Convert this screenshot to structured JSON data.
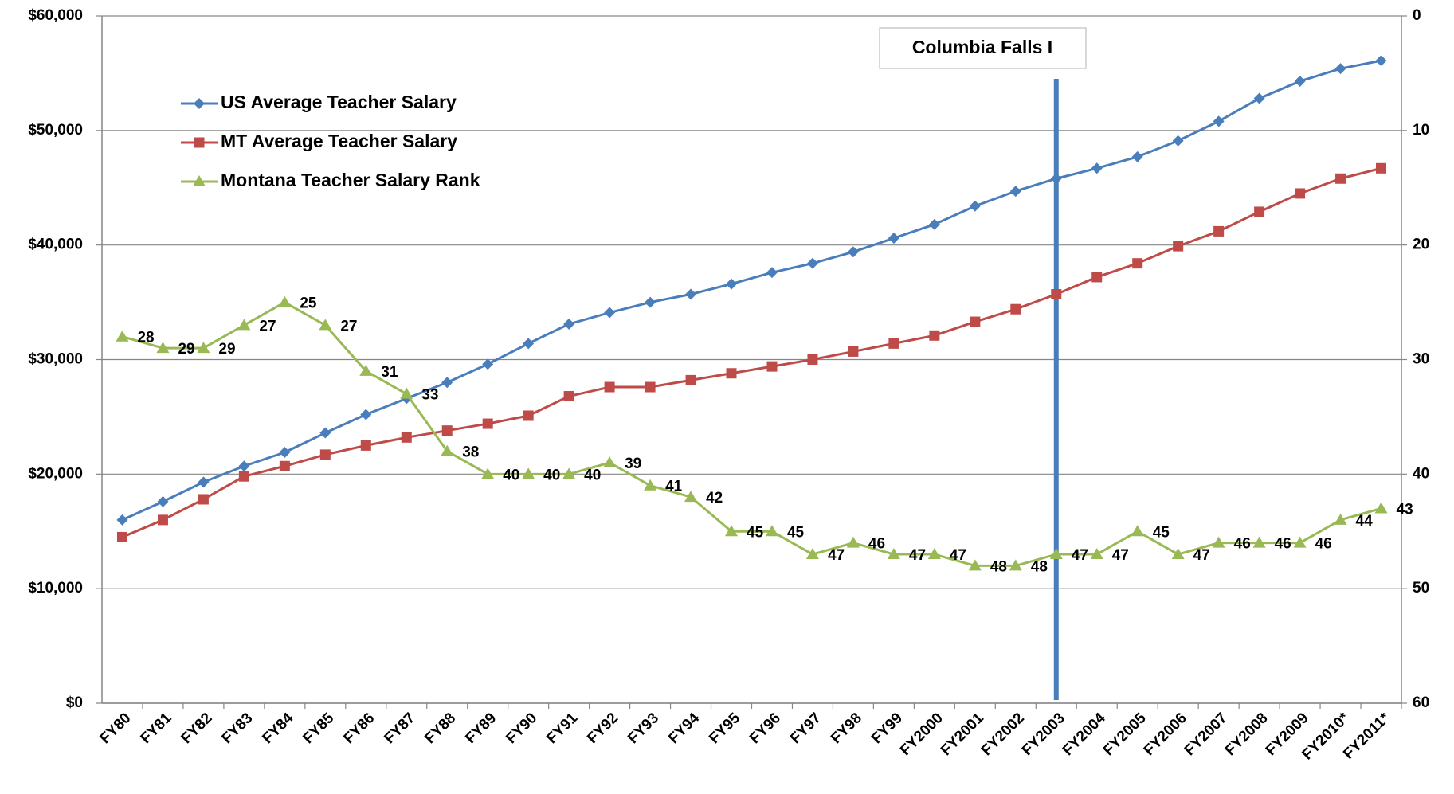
{
  "chart_data": {
    "type": "line",
    "categories": [
      "FY80",
      "FY81",
      "FY82",
      "FY83",
      "FY84",
      "FY85",
      "FY86",
      "FY87",
      "FY88",
      "FY89",
      "FY90",
      "FY91",
      "FY92",
      "FY93",
      "FY94",
      "FY95",
      "FY96",
      "FY97",
      "FY98",
      "FY99",
      "FY2000",
      "FY2001",
      "FY2002",
      "FY2003",
      "FY2004",
      "FY2005",
      "FY2006",
      "FY2007",
      "FY2008",
      "FY2009",
      "FY2010*",
      "FY2011*"
    ],
    "series": [
      {
        "name": "US Average Teacher Salary",
        "color": "#4a7ebb",
        "marker": "diamond",
        "values": [
          16000,
          17600,
          19300,
          20700,
          21900,
          23600,
          25200,
          26600,
          28000,
          29600,
          31400,
          33100,
          34100,
          35000,
          35700,
          36600,
          37600,
          38400,
          39400,
          40600,
          41800,
          43400,
          44700,
          45800,
          46700,
          47700,
          49100,
          50800,
          52800,
          54300,
          55400,
          56100
        ]
      },
      {
        "name": "MT Average Teacher Salary",
        "color": "#be4b48",
        "marker": "square",
        "values": [
          14500,
          16000,
          17800,
          19800,
          20700,
          21700,
          22500,
          23200,
          23800,
          24400,
          25100,
          26800,
          27600,
          27600,
          28200,
          28800,
          29400,
          30000,
          30700,
          31400,
          32100,
          33300,
          34400,
          35700,
          37200,
          38400,
          39900,
          41200,
          42900,
          44500,
          45800,
          46700
        ]
      },
      {
        "name": "Montana Teacher Salary Rank",
        "color": "#98b954",
        "marker": "triangle",
        "axis": "y2",
        "data_labels": true,
        "values": [
          28,
          29,
          29,
          27,
          25,
          27,
          31,
          33,
          38,
          40,
          40,
          40,
          39,
          41,
          42,
          45,
          45,
          47,
          46,
          47,
          47,
          48,
          48,
          47,
          47,
          45,
          47,
          46,
          46,
          46,
          44,
          43
        ]
      }
    ],
    "ylim": [
      0,
      60000
    ],
    "yticks": [
      {
        "value": 0,
        "label": "$0"
      },
      {
        "value": 10000,
        "label": "$10,000"
      },
      {
        "value": 20000,
        "label": "$20,000"
      },
      {
        "value": 30000,
        "label": "$30,000"
      },
      {
        "value": 40000,
        "label": "$40,000"
      },
      {
        "value": 50000,
        "label": "$50,000"
      },
      {
        "value": 60000,
        "label": "$60,000"
      }
    ],
    "y2lim": [
      60,
      0
    ],
    "y2ticks": [
      0,
      10,
      20,
      30,
      40,
      50,
      60
    ],
    "grid": true,
    "legend": "upper left",
    "annotation": {
      "text": "Columbia Falls I",
      "category": "FY2003",
      "color": "#4a7ebb"
    }
  }
}
